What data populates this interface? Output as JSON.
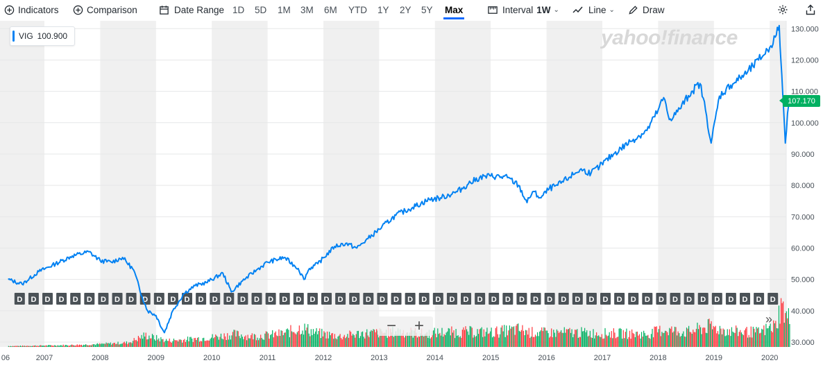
{
  "toolbar": {
    "indicators_label": "Indicators",
    "comparison_label": "Comparison",
    "date_range_label": "Date Range",
    "ranges": [
      "1D",
      "5D",
      "1M",
      "3M",
      "6M",
      "YTD",
      "1Y",
      "2Y",
      "5Y",
      "Max"
    ],
    "active_range": "Max",
    "interval_label": "Interval",
    "interval_value": "1W",
    "chart_type_label": "Line",
    "draw_label": "Draw"
  },
  "legend": {
    "symbol": "VIG",
    "value": "100.900"
  },
  "brand": "yahoo!finance",
  "current_price": "107.170",
  "dividend_marker_label": "D",
  "zoom": {
    "out": "−",
    "in": "+"
  },
  "scroll_end": "»",
  "colors": {
    "line": "#0081f2",
    "price_tag": "#00b061",
    "volume_up": "#00b061",
    "volume_down": "#ff333a",
    "active_tab": "#0f69ff"
  },
  "chart_data": {
    "type": "line",
    "series": [
      {
        "name": "VIG",
        "x": [
          2006.35,
          2006.6,
          2006.9,
          2007.2,
          2007.5,
          2007.8,
          2008.0,
          2008.2,
          2008.4,
          2008.6,
          2008.75,
          2008.85,
          2009.0,
          2009.15,
          2009.3,
          2009.5,
          2009.7,
          2009.9,
          2010.2,
          2010.35,
          2010.55,
          2010.8,
          2011.0,
          2011.3,
          2011.55,
          2011.65,
          2011.75,
          2011.9,
          2012.2,
          2012.4,
          2012.6,
          2012.8,
          2013.0,
          2013.3,
          2013.6,
          2013.9,
          2014.1,
          2014.4,
          2014.6,
          2014.8,
          2015.0,
          2015.3,
          2015.5,
          2015.65,
          2015.75,
          2015.9,
          2016.05,
          2016.2,
          2016.4,
          2016.6,
          2016.8,
          2016.95,
          2017.2,
          2017.5,
          2017.8,
          2018.0,
          2018.1,
          2018.2,
          2018.35,
          2018.6,
          2018.75,
          2018.85,
          2018.95,
          2019.1,
          2019.3,
          2019.6,
          2019.8,
          2020.0,
          2020.12,
          2020.17,
          2020.2,
          2020.25,
          2020.28,
          2020.32,
          2020.35
        ],
        "y": [
          50.0,
          48.5,
          52.5,
          55.0,
          57.5,
          58.8,
          56.0,
          55.5,
          57.0,
          53.0,
          44.5,
          40.0,
          38.5,
          33.0,
          40.0,
          45.5,
          48.0,
          49.0,
          52.0,
          46.0,
          49.5,
          53.0,
          55.5,
          57.0,
          53.5,
          50.0,
          53.5,
          55.0,
          60.5,
          61.5,
          60.0,
          63.0,
          66.0,
          70.5,
          73.0,
          75.5,
          76.0,
          78.0,
          80.5,
          82.5,
          83.0,
          82.5,
          80.0,
          74.5,
          78.0,
          76.0,
          79.0,
          80.0,
          82.5,
          85.0,
          84.0,
          86.0,
          90.0,
          94.0,
          97.5,
          104.0,
          108.0,
          101.0,
          103.5,
          110.0,
          112.5,
          104.0,
          93.5,
          108.5,
          112.0,
          116.0,
          120.0,
          124.0,
          128.0,
          131.0,
          120.0,
          104.0,
          93.5,
          103.0,
          107.17
        ]
      }
    ],
    "volume": {
      "x": [
        2006.5,
        2007.0,
        2007.5,
        2008.0,
        2008.5,
        2008.8,
        2009.0,
        2009.2,
        2009.5,
        2010.0,
        2010.4,
        2010.7,
        2011.0,
        2011.3,
        2011.6,
        2011.9,
        2012.3,
        2012.7,
        2013.0,
        2013.4,
        2013.8,
        2014.1,
        2014.6,
        2015.0,
        2015.5,
        2015.7,
        2016.0,
        2016.5,
        2016.9,
        2017.3,
        2017.8,
        2018.1,
        2018.5,
        2018.9,
        2019.3,
        2019.8,
        2020.1,
        2020.2,
        2020.3
      ],
      "values": [
        0.2,
        0.3,
        0.4,
        0.6,
        0.9,
        2.4,
        1.8,
        1.3,
        1.5,
        2.0,
        2.6,
        2.2,
        2.4,
        2.8,
        4.0,
        2.8,
        2.2,
        2.8,
        2.9,
        3.2,
        2.7,
        3.0,
        3.1,
        3.0,
        3.6,
        3.0,
        2.9,
        3.0,
        2.8,
        2.8,
        2.6,
        3.6,
        3.0,
        4.2,
        3.2,
        3.0,
        4.4,
        8.5,
        6.0
      ]
    },
    "dividends": [
      2006.55,
      2006.8,
      2007.05,
      2007.3,
      2007.55,
      2007.8,
      2008.05,
      2008.3,
      2008.55,
      2008.8,
      2009.05,
      2009.3,
      2009.55,
      2009.8,
      2010.05,
      2010.3,
      2010.55,
      2010.8,
      2011.05,
      2011.3,
      2011.55,
      2011.8,
      2012.05,
      2012.3,
      2012.55,
      2012.8,
      2013.05,
      2013.3,
      2013.55,
      2013.8,
      2014.05,
      2014.3,
      2014.55,
      2014.8,
      2015.05,
      2015.3,
      2015.55,
      2015.8,
      2016.05,
      2016.3,
      2016.55,
      2016.8,
      2017.05,
      2017.3,
      2017.55,
      2017.8,
      2018.05,
      2018.3,
      2018.55,
      2018.8,
      2019.05,
      2019.3,
      2019.55,
      2019.8,
      2020.05,
      2020.3
    ],
    "x_ticks": [
      "06",
      "2007",
      "2008",
      "2009",
      "2010",
      "2011",
      "2012",
      "2013",
      "2014",
      "2015",
      "2016",
      "2017",
      "2018",
      "2019",
      "2020"
    ],
    "y_ticks": [
      "30.000",
      "40.000",
      "50.000",
      "60.000",
      "70.000",
      "80.000",
      "90.000",
      "100.000",
      "110.000",
      "120.000",
      "130.000"
    ],
    "ylim": [
      30,
      131
    ],
    "grid": true
  }
}
